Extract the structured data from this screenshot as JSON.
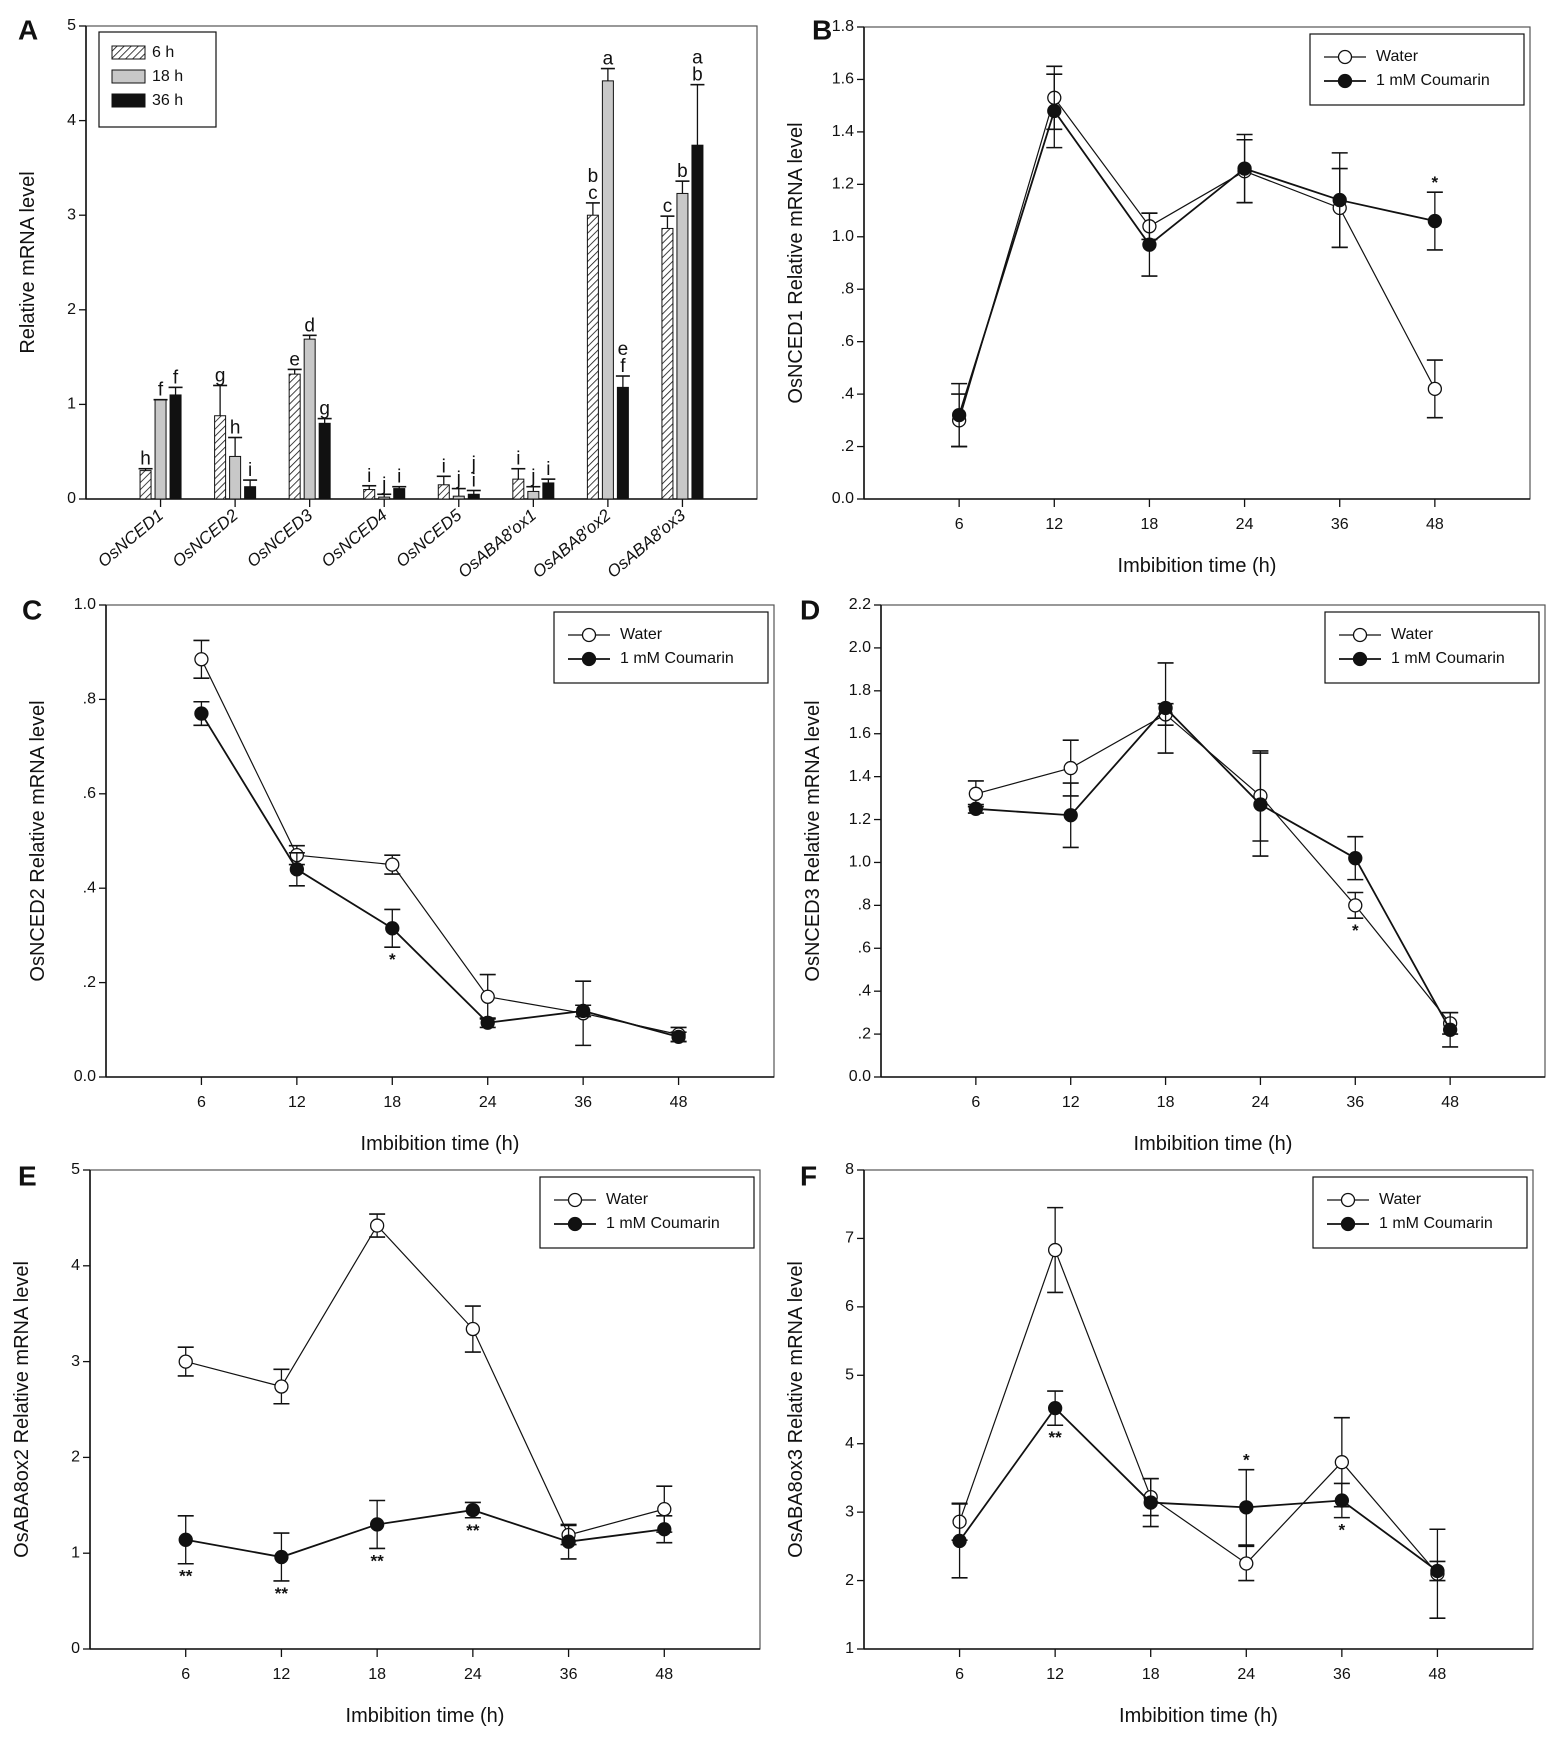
{
  "chart_data": [
    {
      "panel": "A",
      "type": "bar",
      "title": "",
      "xlabel": "",
      "ylabel": "Relative mRNA level",
      "ylim": [
        0,
        5
      ],
      "yticks": [
        0,
        1,
        2,
        3,
        4,
        5
      ],
      "ytick_labels": [
        "0",
        "1",
        "2",
        "3",
        "4",
        "5"
      ],
      "legend_position": "top-left",
      "categories": [
        "OsNCED1",
        "OsNCED2",
        "OsNCED3",
        "OsNCED4",
        "OsNCED5",
        "OsABA8′ox1",
        "OsABA8′ox2",
        "OsABA8′ox3"
      ],
      "series": [
        {
          "name": "6 h",
          "fill": "hatched",
          "values": [
            0.3,
            0.88,
            1.32,
            0.1,
            0.15,
            0.21,
            3.0,
            2.86
          ],
          "errors": [
            0.02,
            0.32,
            0.05,
            0.04,
            0.09,
            0.11,
            0.13,
            0.13
          ],
          "letters": [
            "h",
            "g",
            "e",
            "i",
            "i",
            "i",
            "bc",
            "c"
          ]
        },
        {
          "name": "18 h",
          "fill": "#c8c8c8",
          "values": [
            1.05,
            0.45,
            1.69,
            0.02,
            0.03,
            0.08,
            4.42,
            3.23
          ],
          "errors": [
            0.0,
            0.2,
            0.04,
            0.03,
            0.08,
            0.05,
            0.13,
            0.13
          ],
          "letters": [
            "f",
            "h",
            "d",
            "j",
            "j",
            "j",
            "a",
            "b"
          ]
        },
        {
          "name": "36 h",
          "fill": "#111111",
          "values": [
            1.1,
            0.13,
            0.8,
            0.11,
            0.05,
            0.17,
            1.18,
            3.74
          ],
          "errors": [
            0.08,
            0.07,
            0.05,
            0.02,
            0.04,
            0.04,
            0.12,
            0.64
          ],
          "letters": [
            "f",
            "i",
            "g",
            "i",
            "ji",
            "i",
            "ef",
            "ab"
          ]
        }
      ]
    },
    {
      "panel": "B",
      "type": "line",
      "xlabel": "Imbibition time (h)",
      "ylabel": "OsNCED1 Relative mRNA level",
      "categories": [
        "6",
        "12",
        "18",
        "24",
        "36",
        "48"
      ],
      "ylim": [
        0,
        1.8
      ],
      "yticks": [
        0,
        0.2,
        0.4,
        0.6,
        0.8,
        1.0,
        1.2,
        1.4,
        1.6,
        1.8
      ],
      "ytick_labels": [
        "0.0",
        ".2",
        ".4",
        ".6",
        ".8",
        "1.0",
        "1.2",
        "1.4",
        "1.6",
        "1.8"
      ],
      "legend_position": "top-right",
      "series": [
        {
          "name": "Water",
          "marker": "open",
          "values": [
            0.3,
            1.53,
            1.04,
            1.25,
            1.11,
            0.42
          ],
          "errors": [
            0.1,
            0.12,
            0.05,
            0.12,
            0.15,
            0.11
          ]
        },
        {
          "name": "1 mM Coumarin",
          "marker": "filled",
          "values": [
            0.32,
            1.48,
            0.97,
            1.26,
            1.14,
            1.06
          ],
          "errors": [
            0.12,
            0.14,
            0.12,
            0.13,
            0.18,
            0.11
          ]
        }
      ],
      "annotations": [
        {
          "series": 1,
          "index": 5,
          "text": "*",
          "position": "above"
        }
      ]
    },
    {
      "panel": "C",
      "type": "line",
      "xlabel": "Imbibition time (h)",
      "ylabel": "OsNCED2 Relative mRNA level",
      "categories": [
        "6",
        "12",
        "18",
        "24",
        "36",
        "48"
      ],
      "ylim": [
        0,
        1.0
      ],
      "yticks": [
        0,
        0.2,
        0.4,
        0.6,
        0.8,
        1.0
      ],
      "ytick_labels": [
        "0.0",
        ".2",
        ".4",
        ".6",
        ".8",
        "1.0"
      ],
      "legend_position": "top-right",
      "series": [
        {
          "name": "Water",
          "marker": "open",
          "values": [
            0.885,
            0.47,
            0.45,
            0.17,
            0.135,
            0.09
          ],
          "errors": [
            0.04,
            0.02,
            0.02,
            0.047,
            0.068,
            0.015
          ]
        },
        {
          "name": "1 mM Coumarin",
          "marker": "filled",
          "values": [
            0.77,
            0.44,
            0.315,
            0.115,
            0.14,
            0.085
          ],
          "errors": [
            0.025,
            0.035,
            0.04,
            0.01,
            0.012,
            0.01
          ]
        }
      ],
      "annotations": [
        {
          "series": 1,
          "index": 2,
          "text": "*",
          "position": "below"
        }
      ]
    },
    {
      "panel": "D",
      "type": "line",
      "xlabel": "Imbibition time (h)",
      "ylabel": "OsNCED3 Relative mRNA level",
      "categories": [
        "6",
        "12",
        "18",
        "24",
        "36",
        "48"
      ],
      "ylim": [
        0,
        2.2
      ],
      "yticks": [
        0,
        0.2,
        0.4,
        0.6,
        0.8,
        1.0,
        1.2,
        1.4,
        1.6,
        1.8,
        2.0,
        2.2
      ],
      "ytick_labels": [
        "0.0",
        ".2",
        ".4",
        ".6",
        ".8",
        "1.0",
        "1.2",
        "1.4",
        "1.6",
        "1.8",
        "2.0",
        "2.2"
      ],
      "legend_position": "top-right",
      "series": [
        {
          "name": "Water",
          "marker": "open",
          "values": [
            1.32,
            1.44,
            1.69,
            1.31,
            0.8,
            0.25
          ],
          "errors": [
            0.06,
            0.13,
            0.05,
            0.21,
            0.06,
            0.05
          ]
        },
        {
          "name": "1 mM Coumarin",
          "marker": "filled",
          "values": [
            1.25,
            1.22,
            1.72,
            1.27,
            1.02,
            0.22
          ],
          "errors": [
            0.02,
            0.15,
            0.21,
            0.24,
            0.1,
            0.08
          ]
        }
      ],
      "annotations": [
        {
          "series": 0,
          "index": 4,
          "text": "*",
          "position": "below"
        }
      ]
    },
    {
      "panel": "E",
      "type": "line",
      "xlabel": "Imbibition time (h)",
      "ylabel": "OsABA8ox2 Relative mRNA level",
      "categories": [
        "6",
        "12",
        "18",
        "24",
        "36",
        "48"
      ],
      "ylim": [
        0,
        5
      ],
      "yticks": [
        0,
        1,
        2,
        3,
        4,
        5
      ],
      "ytick_labels": [
        "0",
        "1",
        "2",
        "3",
        "4",
        "5"
      ],
      "legend_position": "top-right",
      "series": [
        {
          "name": "Water",
          "marker": "open",
          "values": [
            3.0,
            2.74,
            4.42,
            3.34,
            1.19,
            1.46
          ],
          "errors": [
            0.15,
            0.18,
            0.12,
            0.24,
            0.1,
            0.24
          ]
        },
        {
          "name": "1 mM Coumarin",
          "marker": "filled",
          "values": [
            1.14,
            0.96,
            1.3,
            1.45,
            1.12,
            1.25
          ],
          "errors": [
            0.25,
            0.25,
            0.25,
            0.08,
            0.18,
            0.14
          ]
        }
      ],
      "annotations": [
        {
          "series": 1,
          "index": 0,
          "text": "**",
          "position": "below"
        },
        {
          "series": 1,
          "index": 1,
          "text": "**",
          "position": "below"
        },
        {
          "series": 1,
          "index": 2,
          "text": "**",
          "position": "below"
        },
        {
          "series": 1,
          "index": 3,
          "text": "**",
          "position": "below"
        }
      ]
    },
    {
      "panel": "F",
      "type": "line",
      "xlabel": "Imbibition time (h)",
      "ylabel": "OsABA8ox3 Relative mRNA level",
      "categories": [
        "6",
        "12",
        "18",
        "24",
        "36",
        "48"
      ],
      "ylim": [
        1,
        8
      ],
      "yticks": [
        1,
        2,
        3,
        4,
        5,
        6,
        7,
        8
      ],
      "ytick_labels": [
        "1",
        "2",
        "3",
        "4",
        "5",
        "6",
        "7",
        "8"
      ],
      "legend_position": "top-right",
      "series": [
        {
          "name": "Water",
          "marker": "open",
          "values": [
            2.86,
            6.83,
            3.22,
            2.25,
            3.73,
            2.1
          ],
          "errors": [
            0.27,
            0.62,
            0.27,
            0.25,
            0.65,
            0.65
          ]
        },
        {
          "name": "1 mM Coumarin",
          "marker": "filled",
          "values": [
            2.58,
            4.52,
            3.14,
            3.07,
            3.17,
            2.14
          ],
          "errors": [
            0.54,
            0.25,
            0.35,
            0.55,
            0.25,
            0.14
          ]
        }
      ],
      "annotations": [
        {
          "series": 1,
          "index": 1,
          "text": "**",
          "position": "below"
        },
        {
          "series": 1,
          "index": 3,
          "text": "*",
          "position": "above"
        },
        {
          "series": 1,
          "index": 4,
          "text": "*",
          "position": "below"
        }
      ]
    }
  ]
}
